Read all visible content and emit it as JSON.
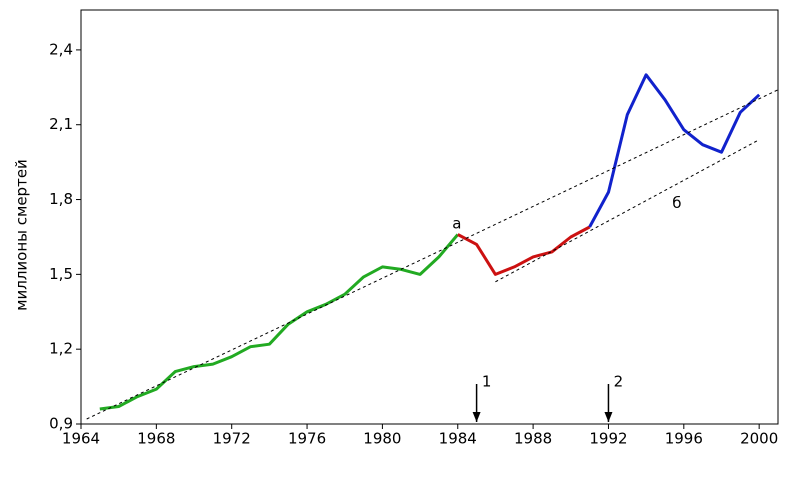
{
  "chart_data": {
    "type": "line",
    "y_label": "миллионы смертей",
    "xlim": [
      1964,
      2001
    ],
    "ylim": [
      0.9,
      2.56
    ],
    "xticks": [
      1964,
      1968,
      1972,
      1976,
      1980,
      1984,
      1988,
      1992,
      1996,
      2000
    ],
    "yticks": [
      {
        "value": 0.9,
        "label": "0,9"
      },
      {
        "value": 1.2,
        "label": "1,2"
      },
      {
        "value": 1.5,
        "label": "1,5"
      },
      {
        "value": 1.8,
        "label": "1,8"
      },
      {
        "value": 2.1,
        "label": "2,1"
      },
      {
        "value": 2.4,
        "label": "2,4"
      }
    ],
    "series": [
      {
        "color": "#22aa22",
        "x": [
          1965,
          1966,
          1967,
          1968,
          1969,
          1970,
          1971,
          1972,
          1973,
          1974,
          1975,
          1976,
          1977,
          1978,
          1979,
          1980,
          1981,
          1982,
          1983,
          1984
        ],
        "values": [
          0.96,
          0.97,
          1.01,
          1.04,
          1.11,
          1.13,
          1.14,
          1.17,
          1.21,
          1.22,
          1.3,
          1.35,
          1.38,
          1.42,
          1.49,
          1.53,
          1.52,
          1.5,
          1.57,
          1.66
        ]
      },
      {
        "color": "#cc1111",
        "x": [
          1984,
          1985,
          1986,
          1987,
          1988,
          1989,
          1990,
          1991
        ],
        "values": [
          1.66,
          1.62,
          1.5,
          1.53,
          1.57,
          1.59,
          1.65,
          1.69
        ]
      },
      {
        "color": "#1122cc",
        "x": [
          1991,
          1992,
          1993,
          1994,
          1995,
          1996,
          1997,
          1998,
          1999,
          2000
        ],
        "values": [
          1.69,
          1.83,
          2.14,
          2.3,
          2.2,
          2.08,
          2.02,
          1.99,
          2.15,
          2.22
        ]
      },
      {
        "name": "а",
        "color": "#000000",
        "dashed": true,
        "x": [
          1964.3,
          2001
        ],
        "values": [
          0.92,
          2.24
        ]
      },
      {
        "name": "б",
        "color": "#000000",
        "dashed": true,
        "x": [
          1986,
          2000
        ],
        "values": [
          1.47,
          2.04
        ]
      }
    ],
    "annotations": [
      {
        "text": "1",
        "x": 1985
      },
      {
        "text": "2",
        "x": 1992
      }
    ]
  }
}
